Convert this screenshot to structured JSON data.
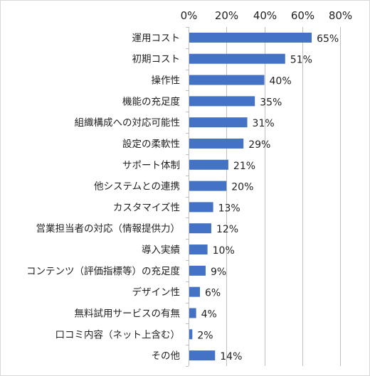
{
  "chart_data": {
    "type": "bar",
    "orientation": "horizontal",
    "categories": [
      "運用コスト",
      "初期コスト",
      "操作性",
      "機能の充足度",
      "組織構成への対応可能性",
      "設定の柔軟性",
      "サポート体制",
      "他システムとの連携",
      "カスタマイズ性",
      "営業担当者の対応（情報提供力）",
      "導入実績",
      "コンテンツ（評価指標等）の充足度",
      "デザイン性",
      "無料試用サービスの有無",
      "口コミ内容（ネット上含む）",
      "その他"
    ],
    "values": [
      65,
      51,
      40,
      35,
      31,
      29,
      21,
      20,
      13,
      12,
      10,
      9,
      6,
      4,
      2,
      14
    ],
    "value_suffix": "%",
    "xlim": [
      0,
      80
    ],
    "xticks": [
      "0%",
      "20%",
      "40%",
      "60%",
      "80%"
    ],
    "x_axis_position": "top",
    "grid": true,
    "legend": "none",
    "colors": {
      "bar": "#4472c4",
      "grid": "#bfbfbf",
      "axis": "#bfbfbf",
      "text": "#222222"
    }
  }
}
